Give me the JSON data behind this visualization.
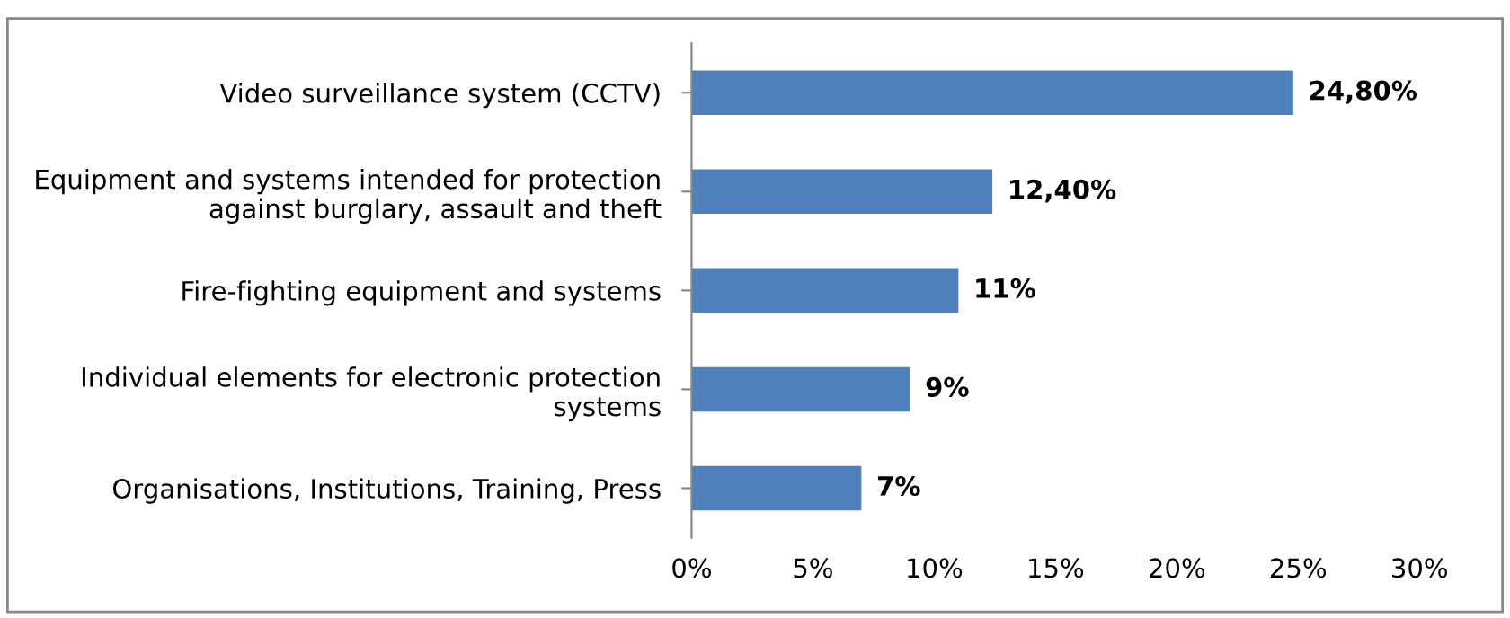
{
  "chart_data": {
    "type": "bar",
    "orientation": "horizontal",
    "categories": [
      "Video surveillance system (CCTV)",
      "Equipment and systems intended for protection\nagainst burglary, assault and theft",
      "Fire-fighting equipment and systems",
      "Individual elements for electronic protection\nsystems",
      "Organisations, Institutions, Training, Press"
    ],
    "values": [
      24.8,
      12.4,
      11,
      9,
      7
    ],
    "value_labels": [
      "24,80%",
      "12,40%",
      "11%",
      "9%",
      "7%"
    ],
    "color": "#4f81bd",
    "xlim": [
      0,
      30
    ],
    "xticks": [
      {
        "value": 0,
        "label": "0%"
      },
      {
        "value": 5,
        "label": "5%"
      },
      {
        "value": 10,
        "label": "10%"
      },
      {
        "value": 15,
        "label": "15%"
      },
      {
        "value": 20,
        "label": "20%"
      },
      {
        "value": 25,
        "label": "25%"
      },
      {
        "value": 30,
        "label": "30%"
      }
    ],
    "grid": false,
    "legend": false
  }
}
